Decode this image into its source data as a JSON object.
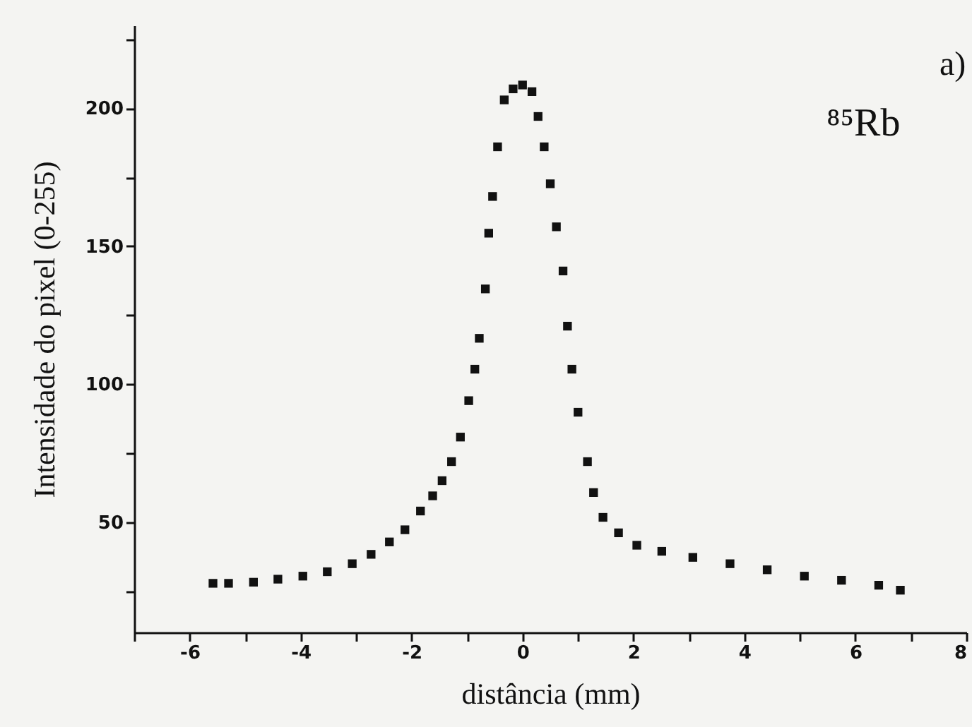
{
  "chart_data": {
    "type": "scatter",
    "xlabel": "distância (mm)",
    "ylabel": "Intensidade do pixel (0-255)",
    "annotations": [
      "a)",
      "⁸⁵Rb"
    ],
    "x": [
      -5.58,
      -5.3,
      -4.85,
      -4.41,
      -3.96,
      -3.52,
      -3.07,
      -2.73,
      -2.4,
      -2.12,
      -1.84,
      -1.62,
      -1.45,
      -1.28,
      -1.12,
      -0.97,
      -0.86,
      -0.78,
      -0.67,
      -0.61,
      -0.54,
      -0.45,
      -0.33,
      -0.17,
      0,
      0.17,
      0.28,
      0.39,
      0.5,
      0.61,
      0.73,
      0.81,
      0.89,
      1.0,
      1.17,
      1.28,
      1.45,
      1.73,
      2.06,
      2.51,
      3.07,
      3.74,
      4.41,
      5.08,
      5.75,
      6.42,
      6.81
    ],
    "series": [
      {
        "color": "#111111",
        "values": [
          27.8,
          27.8,
          28.2,
          29.3,
          30.4,
          32,
          34.9,
          38.3,
          42.8,
          47.2,
          54,
          59.5,
          65,
          71.9,
          80.8,
          94,
          105.4,
          116.6,
          134.5,
          154.7,
          168,
          186,
          203,
          207,
          208.4,
          206,
          197,
          186,
          172.6,
          157,
          141,
          121,
          105.4,
          89.8,
          71.9,
          60.7,
          51.7,
          46.1,
          41.6,
          39.4,
          37.2,
          34.9,
          32.7,
          30.4,
          28.9,
          27.1,
          25.3
        ]
      }
    ],
    "marker": "square",
    "xlim": [
      -7,
      8
    ],
    "xticks": [
      {
        "value": -7,
        "label": null
      },
      -6,
      {
        "value": -5,
        "label": null
      },
      -4,
      {
        "value": -3,
        "label": null
      },
      -2,
      {
        "value": -1,
        "label": null
      },
      0,
      {
        "value": 1,
        "label": null
      },
      2,
      {
        "value": 3,
        "label": null
      },
      4,
      {
        "value": 5,
        "label": null
      },
      6,
      {
        "value": 7,
        "label": null
      },
      8
    ],
    "ylim": [
      10,
      230
    ],
    "yticks": [
      {
        "value": 25,
        "label": null
      },
      50,
      {
        "value": 75,
        "label": null
      },
      100,
      {
        "value": 125,
        "label": null
      },
      150,
      {
        "value": 175,
        "label": null
      },
      200,
      {
        "value": 225,
        "label": null
      }
    ]
  }
}
